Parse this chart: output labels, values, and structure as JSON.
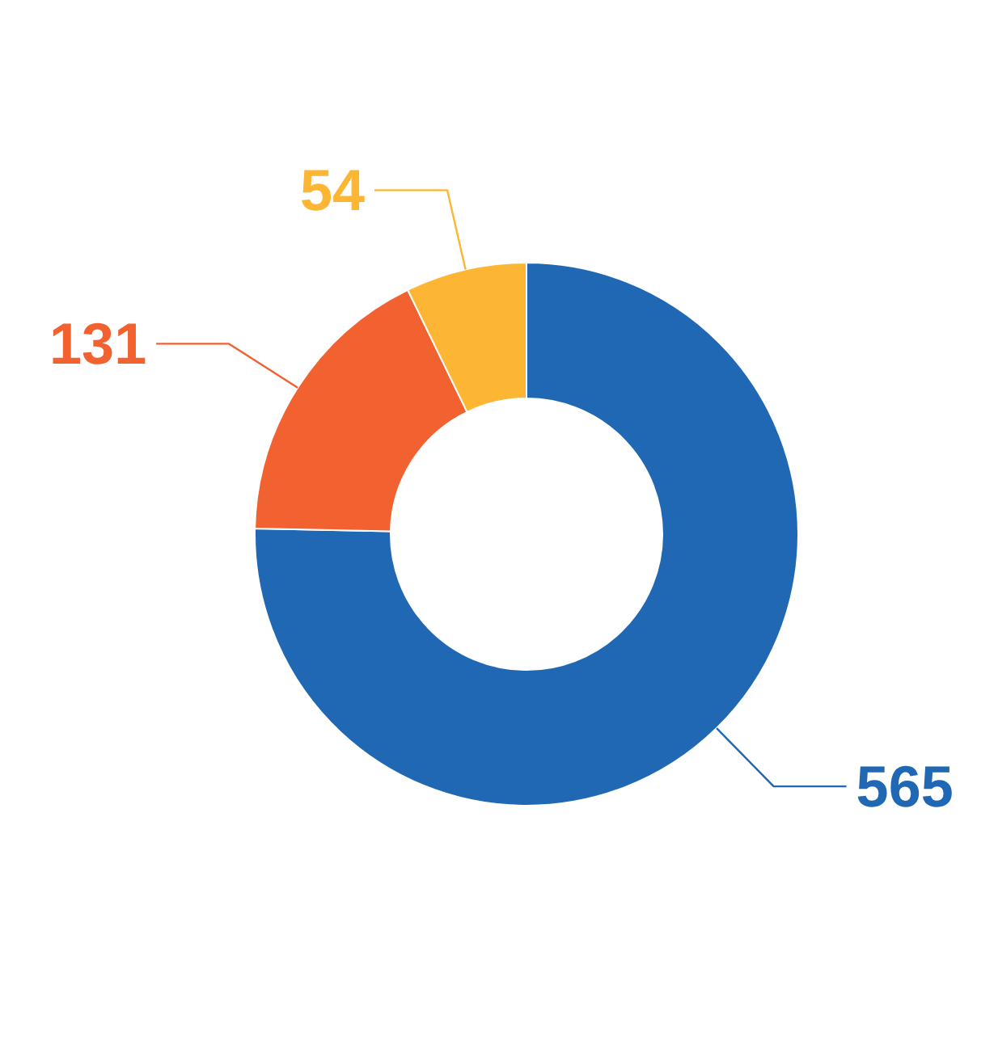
{
  "chart_data": {
    "type": "donut",
    "categories": [
      null,
      null,
      null
    ],
    "values": [
      565,
      131,
      54
    ],
    "colors": [
      "#2068b4",
      "#f26130",
      "#fdb634"
    ],
    "data_labels": true
  }
}
